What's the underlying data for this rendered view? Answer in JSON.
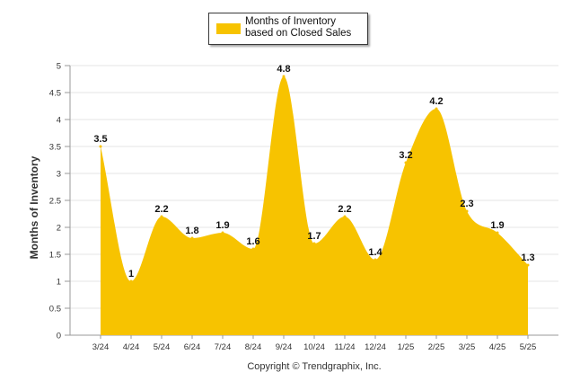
{
  "legend": {
    "label": "Months of Inventory based on Closed Sales",
    "color": "#F7C300"
  },
  "copyright": "Copyright © Trendgraphix, Inc.",
  "chart_data": {
    "type": "area",
    "title": "",
    "xlabel": "",
    "ylabel": "Months of Inventory",
    "categories": [
      "3/24",
      "4/24",
      "5/24",
      "6/24",
      "7/24",
      "8/24",
      "9/24",
      "10/24",
      "11/24",
      "12/24",
      "1/25",
      "2/25",
      "3/25",
      "4/25",
      "5/25"
    ],
    "series": [
      {
        "name": "Months of Inventory based on Closed Sales",
        "values": [
          3.5,
          1,
          2.2,
          1.8,
          1.9,
          1.6,
          4.8,
          1.7,
          2.2,
          1.4,
          3.2,
          4.2,
          2.3,
          1.9,
          1.3
        ],
        "labels": [
          "3.5",
          "1",
          "2.2",
          "1.8",
          "1.9",
          "1.6",
          "4.8",
          "1.7",
          "2.2",
          "1.4",
          "3.2",
          "4.2",
          "2.3",
          "1.9",
          "1.3"
        ],
        "color": "#F7C300"
      }
    ],
    "ylim": [
      0,
      5
    ],
    "yticks": [
      "0",
      "0.5",
      "1",
      "1.5",
      "2",
      "2.5",
      "3",
      "3.5",
      "4",
      "4.5",
      "5"
    ],
    "grid": true,
    "legend_position": "top-center"
  }
}
